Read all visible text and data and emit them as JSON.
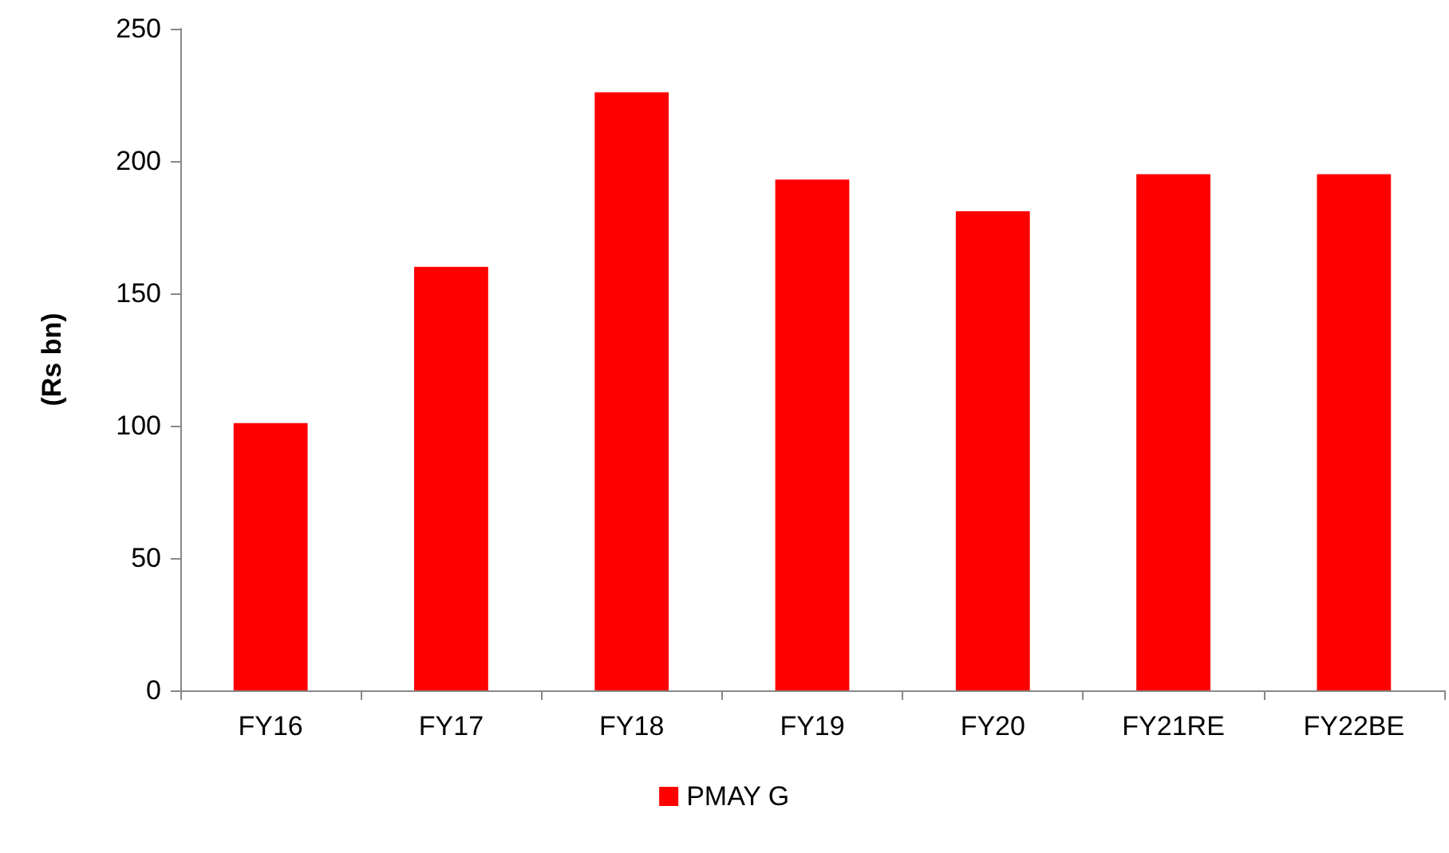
{
  "chart_data": {
    "type": "bar",
    "ylabel": "(Rs bn)",
    "categories": [
      "FY16",
      "FY17",
      "FY18",
      "FY19",
      "FY20",
      "FY21RE",
      "FY22BE"
    ],
    "series": [
      {
        "name": "PMAY G",
        "color": "#ff0000",
        "values": [
          101,
          160,
          226,
          193,
          181,
          195,
          195
        ]
      }
    ],
    "ylim": [
      0,
      250
    ],
    "yticks": [
      0,
      50,
      100,
      150,
      200,
      250
    ],
    "grid": false,
    "legend": "bottom"
  }
}
